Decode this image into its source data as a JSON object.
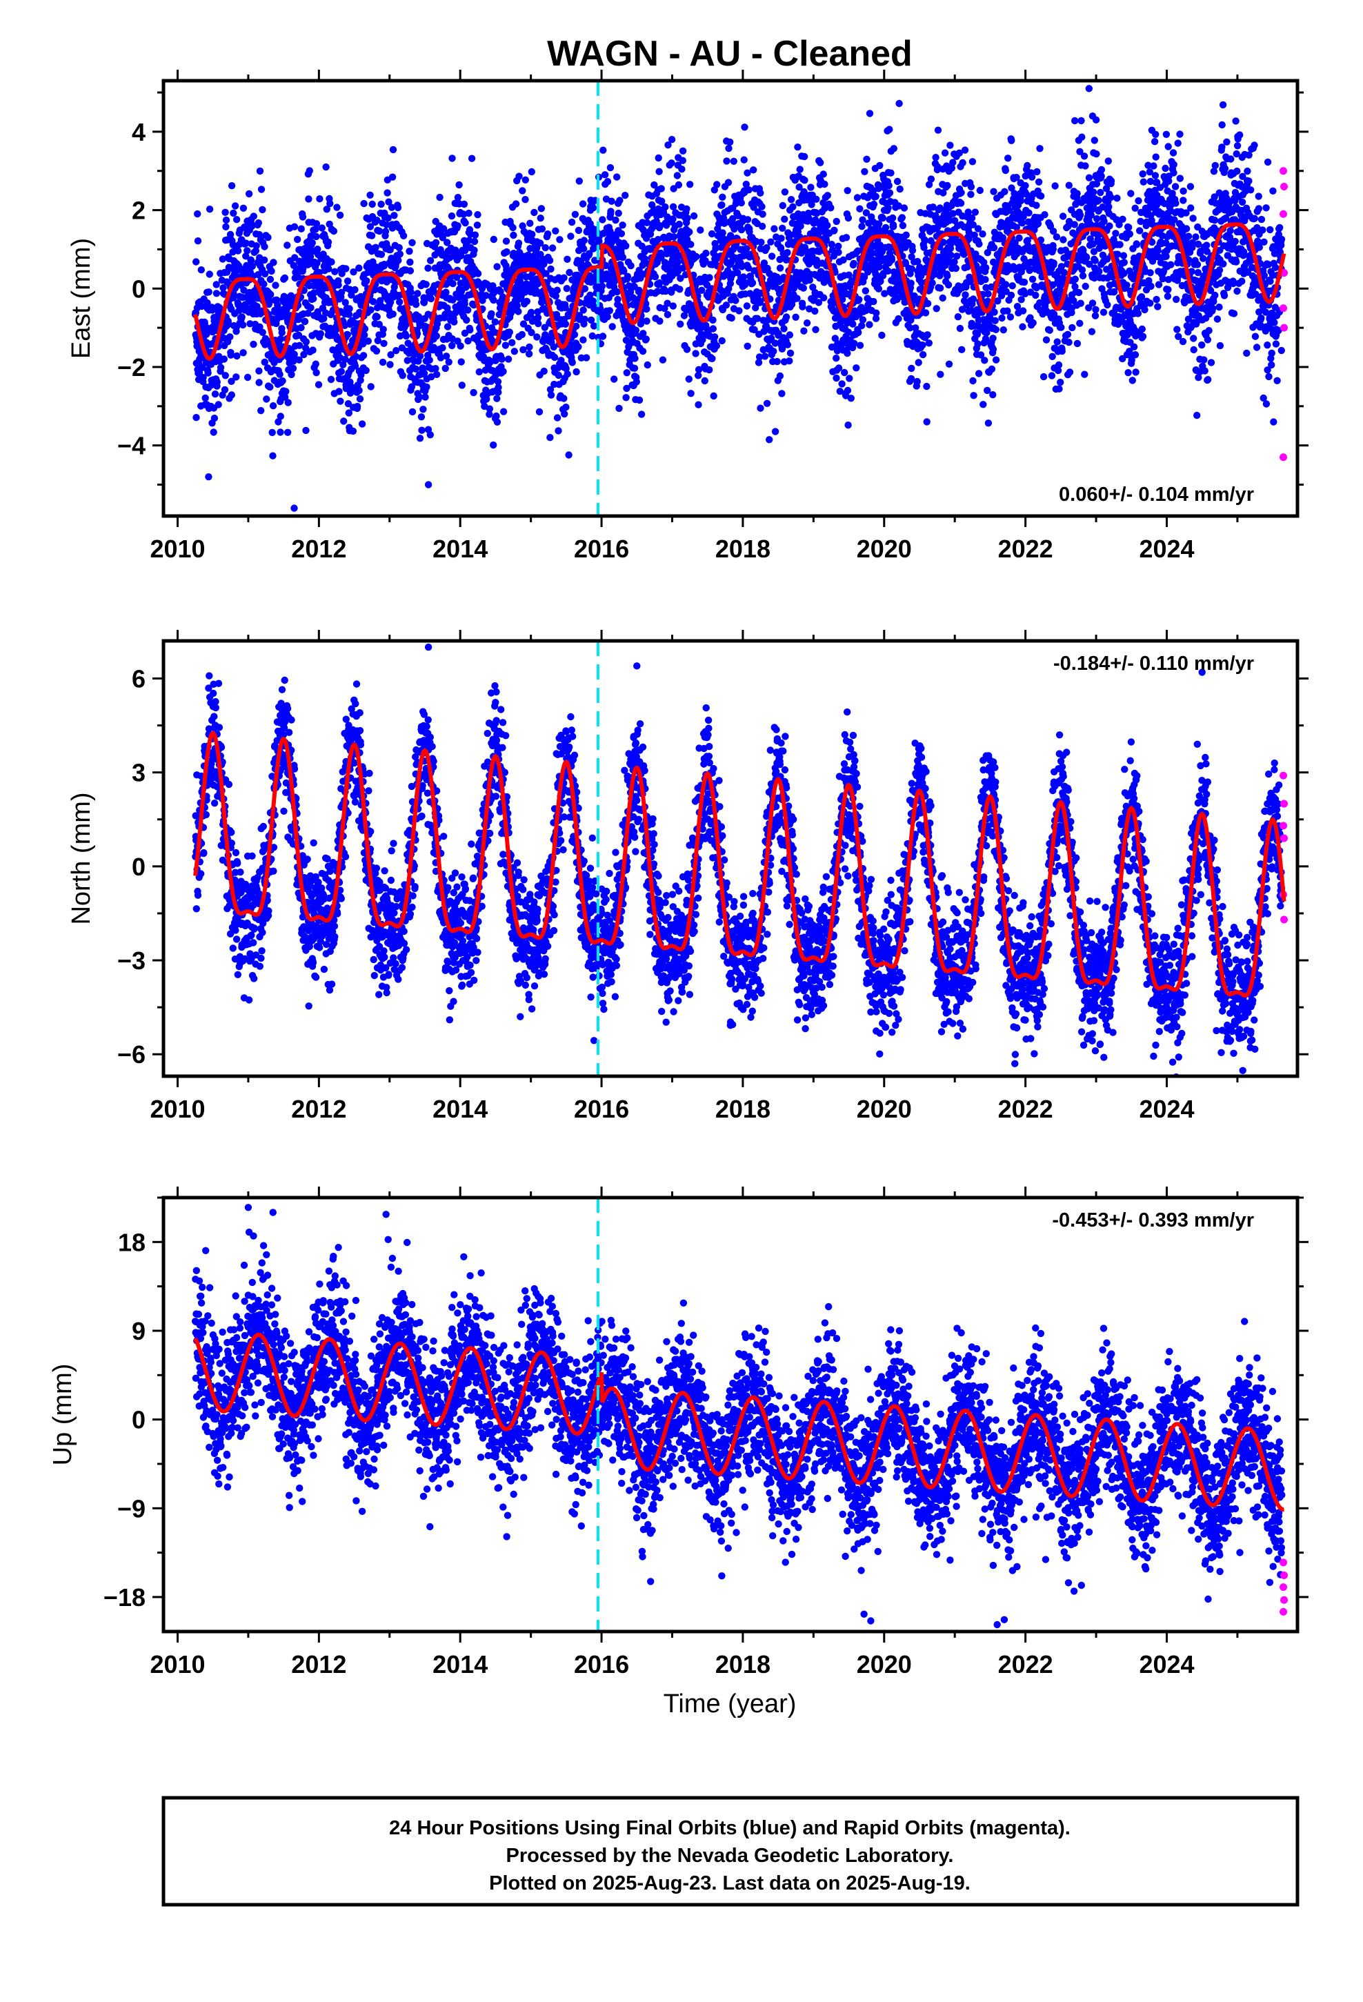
{
  "title": "WAGN  - AU - Cleaned",
  "x_axis_label": "Time (year)",
  "footer": {
    "line1": "24 Hour Positions Using Final Orbits (blue) and Rapid Orbits (magenta).",
    "line2": "Processed by the Nevada Geodetic Laboratory.",
    "line3": "Plotted on 2025-Aug-23. Last data on 2025-Aug-19."
  },
  "colors": {
    "final_orbits": "#0000ff",
    "rapid_orbits": "#ff00ff",
    "model_fit": "#ff0000",
    "equipment_change": "#00e5ff",
    "frame": "#000000"
  },
  "chart_data": [
    {
      "type": "scatter",
      "ylabel": "East (mm)",
      "xlim": [
        2009.8,
        2025.85
      ],
      "ylim": [
        -5.8,
        5.3
      ],
      "x_ticks": [
        2010,
        2012,
        2014,
        2016,
        2018,
        2020,
        2022,
        2024
      ],
      "y_ticks": [
        -4,
        -2,
        0,
        2,
        4
      ],
      "rate_label": "0.060+/- 0.104 mm/yr",
      "rate_position": "bottom-right",
      "equipment_change_year": 2015.95,
      "data_span": [
        2010.25,
        2025.63
      ],
      "rapid_span": [
        2025.63,
        2025.66
      ],
      "model": {
        "offset": -0.55,
        "trend": 0.06,
        "annual_amp": 1.0,
        "annual_phase_peak": 0.95,
        "semiannual_amp": 0.25,
        "semiannual_phase_peak": 0.2,
        "late_shift": 0.55,
        "late_shift_from": 2016.0
      },
      "scatter_sd": 1.05,
      "outliers": [
        [
          2011.65,
          -5.6
        ],
        [
          2013.55,
          -5.0
        ],
        [
          2022.9,
          5.1
        ],
        [
          2022.95,
          4.4
        ],
        [
          2012.1,
          3.1
        ],
        [
          2023.0,
          4.3
        ]
      ],
      "rapid_points": [
        [
          2025.65,
          3.0
        ],
        [
          2025.66,
          2.6
        ],
        [
          2025.65,
          1.9
        ],
        [
          2025.66,
          0.4
        ],
        [
          2025.65,
          -0.5
        ],
        [
          2025.66,
          -1.0
        ],
        [
          2025.65,
          -4.3
        ]
      ],
      "series": [
        {
          "name": "Final Orbits",
          "style": "points",
          "color": "#0000ff"
        },
        {
          "name": "Rapid Orbits",
          "style": "points",
          "color": "#ff00ff"
        },
        {
          "name": "Model fit",
          "style": "line",
          "color": "#ff0000"
        }
      ]
    },
    {
      "type": "scatter",
      "ylabel": "North (mm)",
      "xlim": [
        2009.8,
        2025.85
      ],
      "ylim": [
        -6.7,
        7.2
      ],
      "x_ticks": [
        2010,
        2012,
        2014,
        2016,
        2018,
        2020,
        2022,
        2024
      ],
      "y_ticks": [
        -6,
        -3,
        0,
        3,
        6
      ],
      "rate_label": "-0.184+/- 0.110 mm/yr",
      "rate_position": "top-right",
      "equipment_change_year": 2015.95,
      "data_span": [
        2010.25,
        2025.63
      ],
      "rapid_span": [
        2025.63,
        2025.66
      ],
      "model": {
        "offset": 0.6,
        "trend": -0.184,
        "annual_amp": 2.8,
        "annual_phase_peak": 0.5,
        "semiannual_amp": 0.9,
        "semiannual_phase_peak": 0.0,
        "late_shift": 0.0,
        "late_shift_from": 2016.0
      },
      "scatter_sd": 0.95,
      "outliers": [
        [
          2013.55,
          7.0
        ],
        [
          2013.85,
          -4.9
        ],
        [
          2014.85,
          -4.8
        ],
        [
          2021.85,
          -6.3
        ],
        [
          2024.5,
          6.2
        ],
        [
          2016.5,
          6.4
        ]
      ],
      "rapid_points": [
        [
          2025.65,
          2.9
        ],
        [
          2025.66,
          2.0
        ],
        [
          2025.65,
          1.3
        ],
        [
          2025.66,
          0.9
        ],
        [
          2025.65,
          -0.9
        ],
        [
          2025.66,
          -1.7
        ]
      ],
      "series": [
        {
          "name": "Final Orbits",
          "style": "points",
          "color": "#0000ff"
        },
        {
          "name": "Rapid Orbits",
          "style": "points",
          "color": "#ff00ff"
        },
        {
          "name": "Model fit",
          "style": "line",
          "color": "#ff0000"
        }
      ]
    },
    {
      "type": "scatter",
      "ylabel": "Up (mm)",
      "xlim": [
        2009.8,
        2025.85
      ],
      "ylim": [
        -21.5,
        22.5
      ],
      "x_ticks": [
        2010,
        2012,
        2014,
        2016,
        2018,
        2020,
        2022,
        2024
      ],
      "y_ticks": [
        -18,
        -9,
        0,
        9,
        18
      ],
      "rate_label": "-0.453+/- 0.393 mm/yr",
      "rate_position": "top-right",
      "equipment_change_year": 2015.95,
      "data_span": [
        2010.25,
        2025.63
      ],
      "rapid_span": [
        2025.63,
        2025.66
      ],
      "model": {
        "offset": 5.0,
        "trend": -0.45,
        "annual_amp": 4.0,
        "annual_phase_peak": 0.15,
        "semiannual_amp": 0.0,
        "semiannual_phase_peak": 0.0,
        "late_shift": -3.2,
        "late_shift_from": 2016.0
      },
      "scatter_sd": 3.6,
      "outliers": [
        [
          2011.0,
          21.5
        ],
        [
          2011.35,
          21.0
        ],
        [
          2012.95,
          20.8
        ],
        [
          2021.6,
          -20.8
        ],
        [
          2021.7,
          -20.3
        ],
        [
          2014.05,
          16.5
        ]
      ],
      "rapid_points": [
        [
          2025.65,
          -14.5
        ],
        [
          2025.66,
          -15.8
        ],
        [
          2025.65,
          -17.0
        ],
        [
          2025.66,
          -18.3
        ],
        [
          2025.65,
          -19.5
        ]
      ],
      "series": [
        {
          "name": "Final Orbits",
          "style": "points",
          "color": "#0000ff"
        },
        {
          "name": "Rapid Orbits",
          "style": "points",
          "color": "#ff00ff"
        },
        {
          "name": "Model fit",
          "style": "line",
          "color": "#ff0000"
        }
      ]
    }
  ]
}
